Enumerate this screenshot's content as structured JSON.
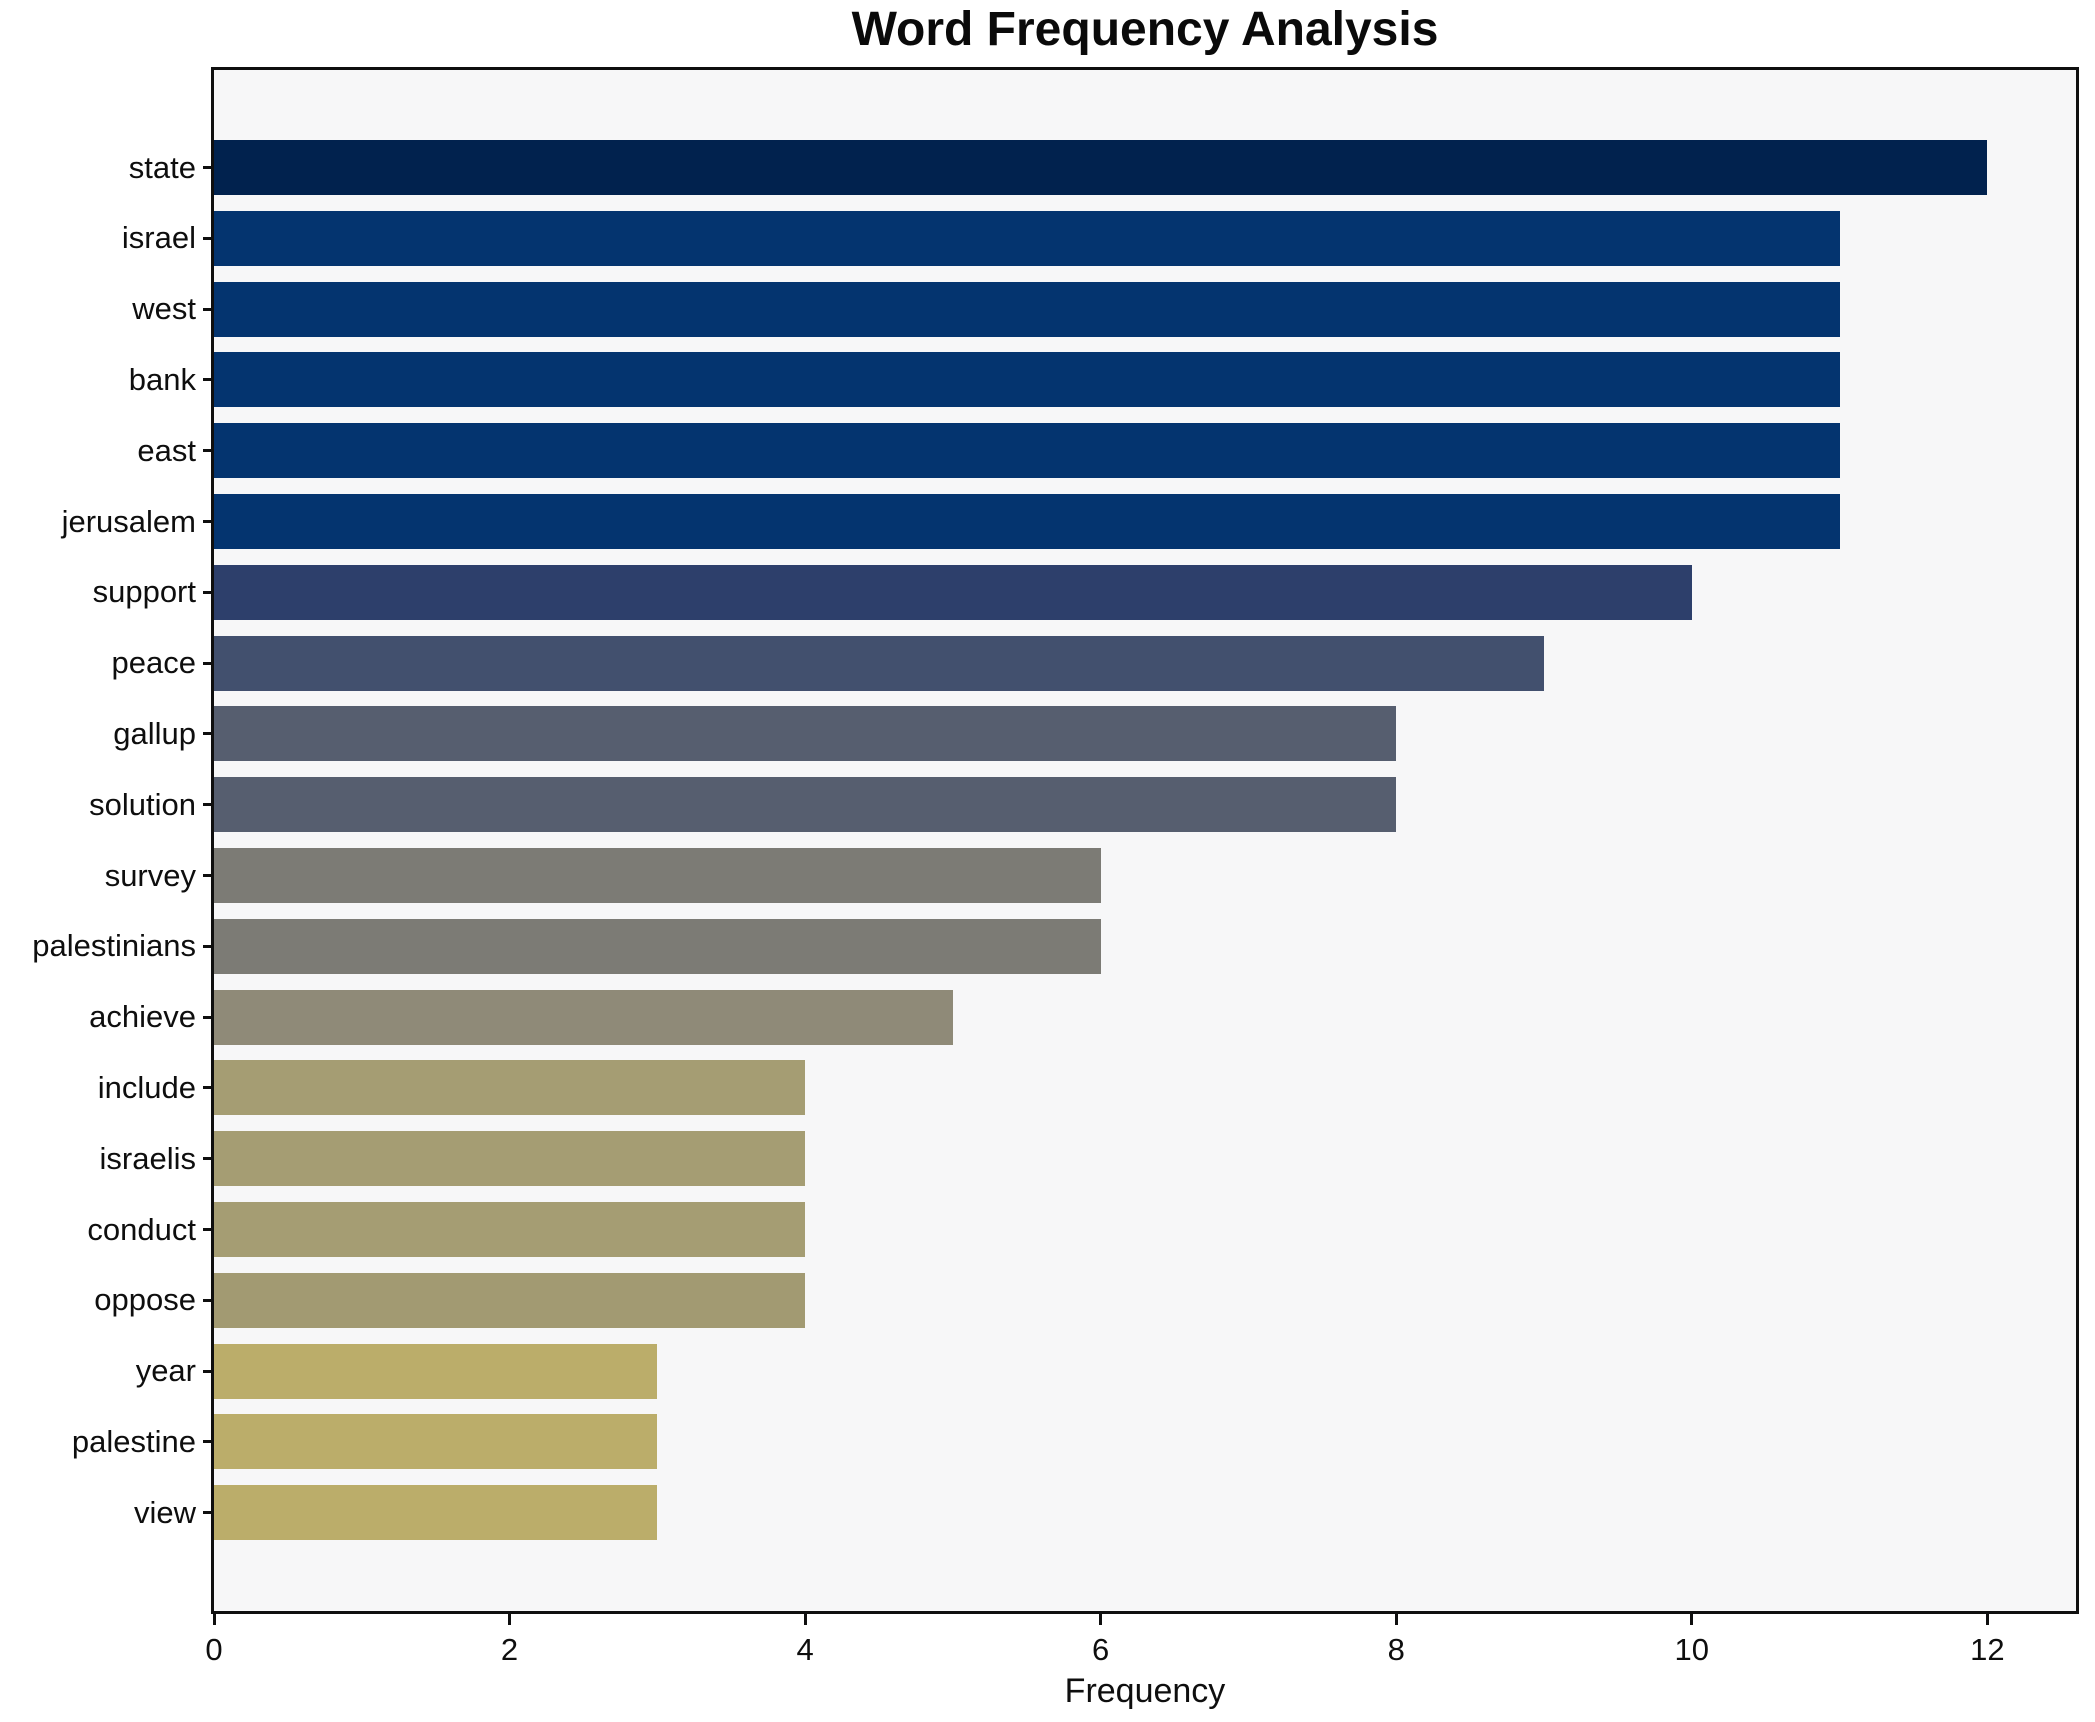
{
  "title": "Word Frequency Analysis",
  "chart_data": {
    "type": "bar",
    "orientation": "horizontal",
    "title": "Word Frequency Analysis",
    "xlabel": "Frequency",
    "ylabel": "",
    "categories": [
      "state",
      "israel",
      "west",
      "bank",
      "east",
      "jerusalem",
      "support",
      "peace",
      "gallup",
      "solution",
      "survey",
      "palestinians",
      "achieve",
      "include",
      "israelis",
      "conduct",
      "oppose",
      "year",
      "palestine",
      "view"
    ],
    "values": [
      12,
      11,
      11,
      11,
      11,
      11,
      10,
      9,
      8,
      8,
      6,
      6,
      5,
      4,
      4,
      4,
      4,
      3,
      3,
      3
    ],
    "bar_colors": [
      "#01224e",
      "#04346f",
      "#04346f",
      "#04346f",
      "#04346f",
      "#04346f",
      "#2d3f6b",
      "#42506e",
      "#565e6f",
      "#565e6f",
      "#7c7b75",
      "#7c7b75",
      "#8f8a78",
      "#a59d73",
      "#a59d73",
      "#a59d73",
      "#a29a72",
      "#bbad6a",
      "#bbad6a",
      "#bbad6a"
    ],
    "xlim": [
      0,
      12.6
    ],
    "xticks": [
      0,
      2,
      4,
      6,
      8,
      10,
      12
    ],
    "grid": false,
    "legend": false,
    "plot_background": "#f7f7f8",
    "figure_background": "#ffffff",
    "spine_color": "#0f0f0f"
  }
}
